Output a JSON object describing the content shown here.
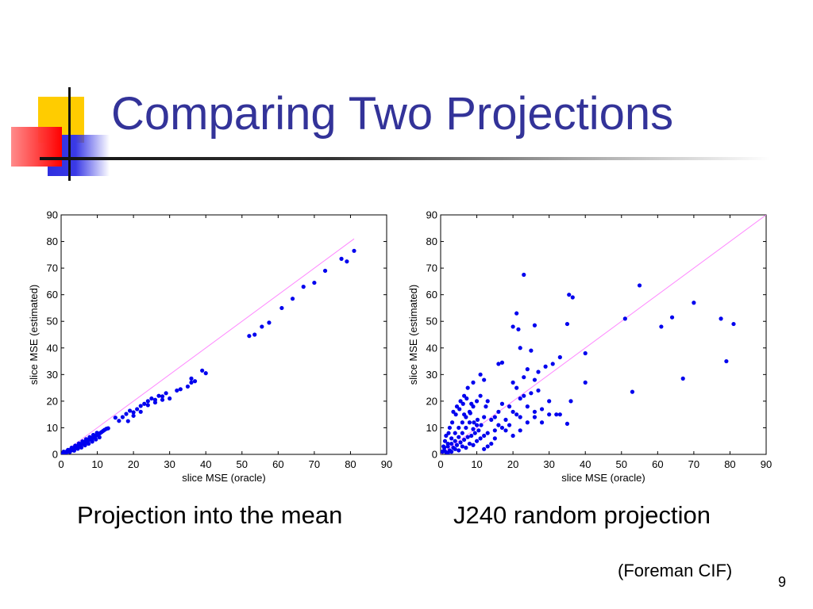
{
  "slide": {
    "title": "Comparing Two Projections",
    "source_note": "(Foreman CIF)",
    "page_number": "9",
    "accent_colors": {
      "title": "#333399",
      "yellow": "#ffcc00",
      "blue": "#3333dd",
      "red": "#ff2a2a"
    }
  },
  "chart_data": [
    {
      "type": "scatter",
      "caption": "Projection into the mean",
      "xlabel": "slice MSE (oracle)",
      "ylabel": "slice MSE (estimated)",
      "xlim": [
        0,
        90
      ],
      "ylim": [
        0,
        90
      ],
      "xticks": [
        0,
        10,
        20,
        30,
        40,
        50,
        60,
        70,
        80,
        90
      ],
      "yticks": [
        0,
        10,
        20,
        30,
        40,
        50,
        60,
        70,
        80,
        90
      ],
      "point_color": "#0000ee",
      "reference_line": {
        "x": [
          0,
          81
        ],
        "y": [
          0,
          81
        ],
        "color": "#ff88ff"
      },
      "points": [
        [
          0.5,
          0.3
        ],
        [
          0.8,
          0.5
        ],
        [
          1.0,
          0.6
        ],
        [
          1.2,
          0.9
        ],
        [
          1.5,
          0.8
        ],
        [
          1.7,
          1.2
        ],
        [
          2.0,
          1.1
        ],
        [
          2.2,
          1.5
        ],
        [
          2.5,
          1.3
        ],
        [
          2.7,
          1.8
        ],
        [
          3.0,
          1.6
        ],
        [
          3.2,
          2.2
        ],
        [
          3.5,
          2.0
        ],
        [
          3.7,
          2.6
        ],
        [
          4.0,
          2.4
        ],
        [
          4.2,
          3.0
        ],
        [
          4.5,
          2.8
        ],
        [
          4.8,
          3.4
        ],
        [
          5.0,
          3.2
        ],
        [
          5.3,
          3.8
        ],
        [
          5.5,
          3.5
        ],
        [
          5.8,
          4.2
        ],
        [
          6.0,
          4.0
        ],
        [
          6.3,
          4.6
        ],
        [
          6.5,
          4.3
        ],
        [
          6.8,
          5.0
        ],
        [
          7.0,
          4.8
        ],
        [
          7.3,
          5.4
        ],
        [
          7.5,
          5.2
        ],
        [
          7.8,
          5.8
        ],
        [
          8.0,
          5.6
        ],
        [
          8.3,
          6.2
        ],
        [
          8.6,
          6.0
        ],
        [
          9.0,
          6.6
        ],
        [
          9.3,
          6.4
        ],
        [
          9.6,
          7.0
        ],
        [
          10.0,
          7.2
        ],
        [
          10.4,
          7.6
        ],
        [
          10.8,
          8.0
        ],
        [
          11.2,
          8.4
        ],
        [
          11.6,
          8.8
        ],
        [
          12.0,
          9.2
        ],
        [
          12.5,
          9.6
        ],
        [
          13.0,
          9.8
        ],
        [
          1.3,
          0.4
        ],
        [
          2.4,
          0.9
        ],
        [
          3.6,
          1.4
        ],
        [
          4.6,
          2.1
        ],
        [
          5.6,
          2.6
        ],
        [
          6.6,
          3.4
        ],
        [
          7.6,
          4.0
        ],
        [
          8.6,
          4.8
        ],
        [
          9.6,
          5.6
        ],
        [
          10.6,
          6.4
        ],
        [
          0.7,
          1.0
        ],
        [
          1.9,
          1.7
        ],
        [
          2.9,
          2.5
        ],
        [
          3.9,
          3.3
        ],
        [
          4.9,
          4.1
        ],
        [
          5.9,
          4.9
        ],
        [
          6.9,
          5.7
        ],
        [
          7.9,
          6.5
        ],
        [
          8.9,
          7.3
        ],
        [
          9.9,
          8.1
        ],
        [
          15,
          13.8
        ],
        [
          16,
          12.6
        ],
        [
          17,
          14.0
        ],
        [
          18,
          15.2
        ],
        [
          19,
          16.4
        ],
        [
          20,
          15.8
        ],
        [
          21,
          17.0
        ],
        [
          22,
          18.2
        ],
        [
          23,
          19.0
        ],
        [
          24,
          20.0
        ],
        [
          25,
          21.0
        ],
        [
          26,
          20.5
        ],
        [
          27,
          22.0
        ],
        [
          28,
          21.8
        ],
        [
          29,
          23.0
        ],
        [
          18.5,
          12.5
        ],
        [
          20,
          14.5
        ],
        [
          22,
          16.0
        ],
        [
          24,
          18.5
        ],
        [
          26,
          19.5
        ],
        [
          28,
          20.5
        ],
        [
          30,
          21.0
        ],
        [
          32,
          24.0
        ],
        [
          33,
          24.5
        ],
        [
          35,
          25.5
        ],
        [
          36,
          27.0
        ],
        [
          37,
          27.5
        ],
        [
          39,
          31.5
        ],
        [
          40,
          30.5
        ],
        [
          36,
          28.5
        ],
        [
          52,
          44.5
        ],
        [
          53.5,
          45
        ],
        [
          55.5,
          48
        ],
        [
          57.5,
          49.5
        ],
        [
          61,
          55
        ],
        [
          64,
          58.5
        ],
        [
          67,
          63
        ],
        [
          70,
          64.5
        ],
        [
          73,
          69
        ],
        [
          77.5,
          73.5
        ],
        [
          79,
          72.5
        ],
        [
          81,
          76.5
        ]
      ]
    },
    {
      "type": "scatter",
      "caption": "J240 random projection",
      "xlabel": "slice MSE (oracle)",
      "ylabel": "slice MSE (estimated)",
      "xlim": [
        0,
        90
      ],
      "ylim": [
        0,
        90
      ],
      "xticks": [
        0,
        10,
        20,
        30,
        40,
        50,
        60,
        70,
        80,
        90
      ],
      "yticks": [
        0,
        10,
        20,
        30,
        40,
        50,
        60,
        70,
        80,
        90
      ],
      "point_color": "#0000ee",
      "reference_line": {
        "x": [
          0,
          90
        ],
        "y": [
          0,
          90
        ],
        "color": "#ff88ff"
      },
      "points": [
        [
          0.5,
          1.0
        ],
        [
          1.0,
          2.5
        ],
        [
          1.5,
          0.8
        ],
        [
          2.0,
          4.0
        ],
        [
          2.5,
          1.5
        ],
        [
          3.0,
          6.0
        ],
        [
          3.5,
          2.5
        ],
        [
          4.0,
          8.0
        ],
        [
          4.5,
          3.5
        ],
        [
          5.0,
          10.0
        ],
        [
          5.5,
          4.5
        ],
        [
          6.0,
          12.0
        ],
        [
          6.5,
          5.5
        ],
        [
          7.0,
          14.0
        ],
        [
          7.5,
          6.5
        ],
        [
          8.0,
          16.0
        ],
        [
          8.5,
          7.0
        ],
        [
          9.0,
          18.0
        ],
        [
          9.5,
          8.0
        ],
        [
          10.0,
          20.0
        ],
        [
          10.5,
          9.0
        ],
        [
          11.0,
          22.0
        ],
        [
          1.2,
          5.0
        ],
        [
          2.2,
          8.0
        ],
        [
          3.2,
          12.0
        ],
        [
          4.2,
          15.0
        ],
        [
          5.2,
          17.0
        ],
        [
          6.2,
          19.0
        ],
        [
          7.2,
          21.0
        ],
        [
          8.2,
          15.5
        ],
        [
          9.2,
          12.0
        ],
        [
          10.2,
          13.0
        ],
        [
          11.2,
          11.0
        ],
        [
          12.0,
          14.0
        ],
        [
          12.5,
          18.0
        ],
        [
          13.0,
          20.0
        ],
        [
          12.0,
          28.0
        ],
        [
          11.0,
          30.0
        ],
        [
          9.0,
          27.0
        ],
        [
          7.5,
          25.0
        ],
        [
          6.5,
          22.0
        ],
        [
          5.5,
          20.0
        ],
        [
          4.5,
          18.0
        ],
        [
          3.5,
          16.0
        ],
        [
          2.5,
          10.0
        ],
        [
          1.5,
          7.0
        ],
        [
          0.8,
          3.0
        ],
        [
          2.0,
          0.5
        ],
        [
          3.0,
          1.0
        ],
        [
          4.0,
          2.0
        ],
        [
          5.0,
          1.5
        ],
        [
          6.0,
          3.0
        ],
        [
          7.0,
          2.5
        ],
        [
          8.0,
          4.0
        ],
        [
          9.0,
          3.5
        ],
        [
          10.0,
          5.0
        ],
        [
          11.0,
          6.0
        ],
        [
          12.0,
          7.0
        ],
        [
          6.0,
          8.0
        ],
        [
          7.0,
          10.0
        ],
        [
          8.0,
          12.0
        ],
        [
          9.0,
          9.5
        ],
        [
          10.0,
          11.0
        ],
        [
          4.0,
          5.0
        ],
        [
          5.0,
          6.5
        ],
        [
          3.0,
          4.0
        ],
        [
          2.0,
          3.0
        ],
        [
          1.0,
          1.5
        ],
        [
          6.5,
          15.0
        ],
        [
          8.5,
          19.0
        ],
        [
          16,
          34
        ],
        [
          17,
          34.5
        ],
        [
          20,
          48
        ],
        [
          21,
          53
        ],
        [
          21.5,
          47
        ],
        [
          23,
          67.5
        ],
        [
          26,
          48.5
        ],
        [
          25,
          39
        ],
        [
          22,
          40
        ],
        [
          24,
          32
        ],
        [
          23,
          29
        ],
        [
          26,
          28
        ],
        [
          27,
          31
        ],
        [
          29,
          33
        ],
        [
          31,
          34
        ],
        [
          33,
          36.5
        ],
        [
          25,
          23
        ],
        [
          27,
          24
        ],
        [
          20,
          27
        ],
        [
          21,
          25
        ],
        [
          22,
          21
        ],
        [
          23,
          22
        ],
        [
          19,
          18
        ],
        [
          20,
          16
        ],
        [
          21,
          15
        ],
        [
          22,
          14
        ],
        [
          18,
          13
        ],
        [
          19,
          11
        ],
        [
          17,
          10
        ],
        [
          18,
          9
        ],
        [
          20,
          7
        ],
        [
          22,
          9
        ],
        [
          24,
          12
        ],
        [
          26,
          14
        ],
        [
          28,
          17
        ],
        [
          30,
          20
        ],
        [
          24,
          18
        ],
        [
          26,
          16
        ],
        [
          28,
          12
        ],
        [
          30,
          15
        ],
        [
          32,
          15
        ],
        [
          33,
          15
        ],
        [
          35,
          11.5
        ],
        [
          36,
          20
        ],
        [
          35,
          49
        ],
        [
          35.5,
          60
        ],
        [
          36.5,
          59
        ],
        [
          40,
          38
        ],
        [
          40,
          27
        ],
        [
          51,
          51
        ],
        [
          53,
          23.5
        ],
        [
          55,
          63.5
        ],
        [
          61,
          48
        ],
        [
          64,
          51.5
        ],
        [
          67,
          28.5
        ],
        [
          70,
          57
        ],
        [
          77.5,
          51
        ],
        [
          79,
          35
        ],
        [
          81,
          49
        ],
        [
          15,
          9
        ],
        [
          16,
          11
        ],
        [
          14,
          13
        ],
        [
          13,
          8
        ],
        [
          15,
          6
        ],
        [
          14,
          4
        ],
        [
          13,
          3
        ],
        [
          12,
          2
        ],
        [
          15,
          14
        ],
        [
          16,
          16
        ],
        [
          17,
          19
        ]
      ]
    }
  ]
}
